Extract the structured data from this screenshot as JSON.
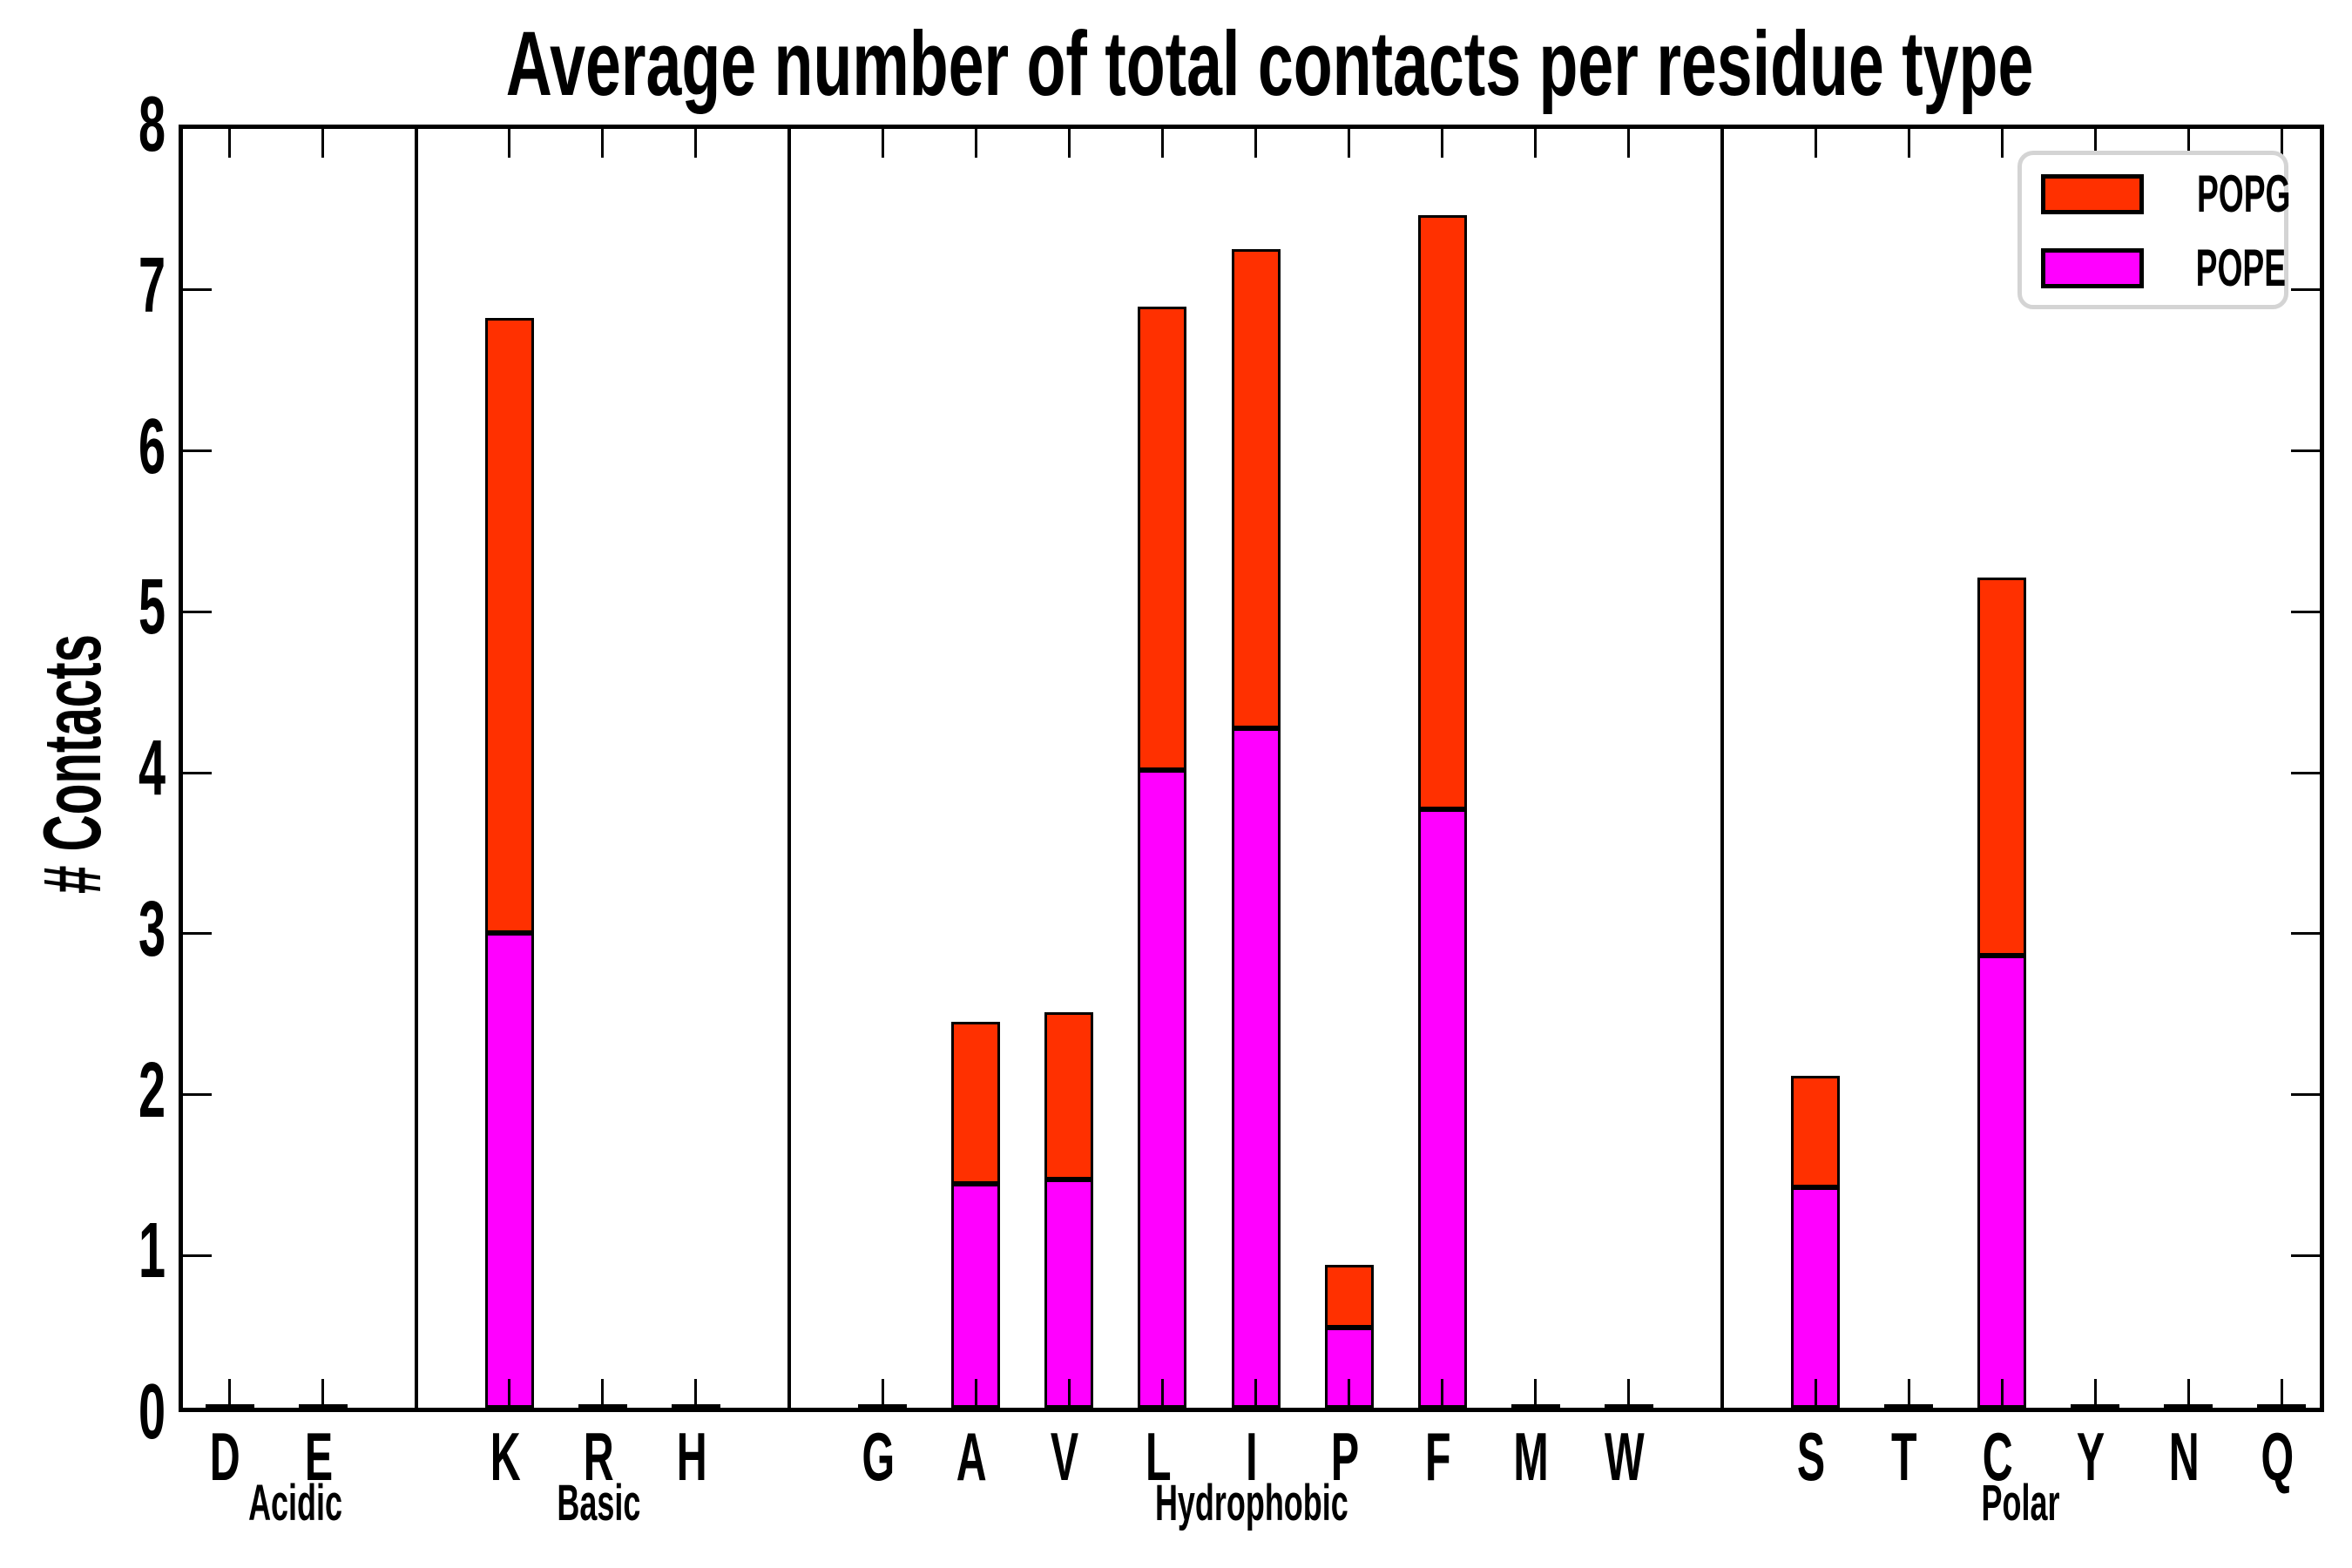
{
  "chart_data": {
    "type": "bar",
    "stacked": true,
    "title": "Average number of total contacts per residue type",
    "xlabel": "",
    "ylabel": "# Contacts",
    "ylim": [
      0,
      8
    ],
    "yticks": [
      0,
      1,
      2,
      3,
      4,
      5,
      6,
      7,
      8
    ],
    "grid": false,
    "tick_style": "inward-all-spines",
    "stack_order_bottom_to_top": [
      "POPE",
      "POPG"
    ],
    "colors": {
      "POPG": "#ff3000",
      "POPE": "#ff00ff",
      "bar_edge": "#000000",
      "frame": "#000000",
      "legend_border": "#d4d4d4"
    },
    "legend": {
      "position": "upper right",
      "entries": [
        {
          "label": "POPG",
          "color": "#ff3000"
        },
        {
          "label": "POPE",
          "color": "#ff00ff"
        }
      ]
    },
    "groups": [
      {
        "label": "Acidic",
        "residues": [
          {
            "letter": "D",
            "POPE": 0,
            "POPG": 0
          },
          {
            "letter": "E",
            "POPE": 0,
            "POPG": 0
          }
        ]
      },
      {
        "label": "Basic",
        "residues": [
          {
            "letter": "K",
            "POPE": 2.95,
            "POPG": 3.82
          },
          {
            "letter": "R",
            "POPE": 0,
            "POPG": 0
          },
          {
            "letter": "H",
            "POPE": 0,
            "POPG": 0
          }
        ]
      },
      {
        "label": "Hydrophobic",
        "residues": [
          {
            "letter": "G",
            "POPE": 0,
            "POPG": 0
          },
          {
            "letter": "A",
            "POPE": 1.39,
            "POPG": 1.01
          },
          {
            "letter": "V",
            "POPE": 1.42,
            "POPG": 1.04
          },
          {
            "letter": "L",
            "POPE": 3.96,
            "POPG": 2.88
          },
          {
            "letter": "I",
            "POPE": 4.22,
            "POPG": 2.98
          },
          {
            "letter": "P",
            "POPE": 0.5,
            "POPG": 0.39
          },
          {
            "letter": "F",
            "POPE": 3.72,
            "POPG": 3.69
          },
          {
            "letter": "M",
            "POPE": 0,
            "POPG": 0
          },
          {
            "letter": "W",
            "POPE": 0,
            "POPG": 0
          }
        ]
      },
      {
        "label": "Polar",
        "residues": [
          {
            "letter": "S",
            "POPE": 1.37,
            "POPG": 0.69
          },
          {
            "letter": "T",
            "POPE": 0,
            "POPG": 0
          },
          {
            "letter": "C",
            "POPE": 2.81,
            "POPG": 2.35
          },
          {
            "letter": "Y",
            "POPE": 0,
            "POPG": 0
          },
          {
            "letter": "N",
            "POPE": 0,
            "POPG": 0
          },
          {
            "letter": "Q",
            "POPE": 0,
            "POPG": 0
          }
        ]
      }
    ]
  }
}
